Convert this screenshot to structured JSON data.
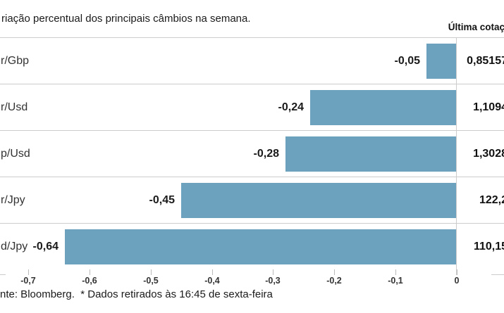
{
  "page": {
    "title": "riação percentual dos principais câmbios na semana.",
    "last_quote_header": "Última cotaç",
    "source_note": "nte: Bloomberg.  * Dados retirados às 16:45 de sexta-feira"
  },
  "chart_data": {
    "type": "bar",
    "orientation": "horizontal",
    "title": "riação percentual dos principais câmbios na semana.",
    "categories": [
      "r/Gbp",
      "r/Usd",
      "p/Usd",
      "r/Jpy",
      "d/Jpy"
    ],
    "values": [
      -0.05,
      -0.24,
      -0.28,
      -0.45,
      -0.64
    ],
    "value_labels": [
      "-0,05",
      "-0,24",
      "-0,28",
      "-0,45",
      "-0,64"
    ],
    "last_quotes": [
      "0,85157",
      "1,1094",
      "1,3028",
      "122,2",
      "110,15"
    ],
    "right_column_header": "Última cotaç",
    "xlim": [
      -0.7,
      0
    ],
    "ticks": [
      -0.7,
      -0.6,
      -0.5,
      -0.4,
      -0.3,
      -0.2,
      -0.1,
      0
    ],
    "tick_labels": [
      "-0,7",
      "-0,6",
      "-0,5",
      "-0,4",
      "-0,3",
      "-0,2",
      "-0,1",
      "0"
    ],
    "bar_color": "#6CA2BE",
    "grid_color": "#cccccc",
    "legend": "none",
    "grid": "horizontal row separators, vertical zero axis line"
  }
}
